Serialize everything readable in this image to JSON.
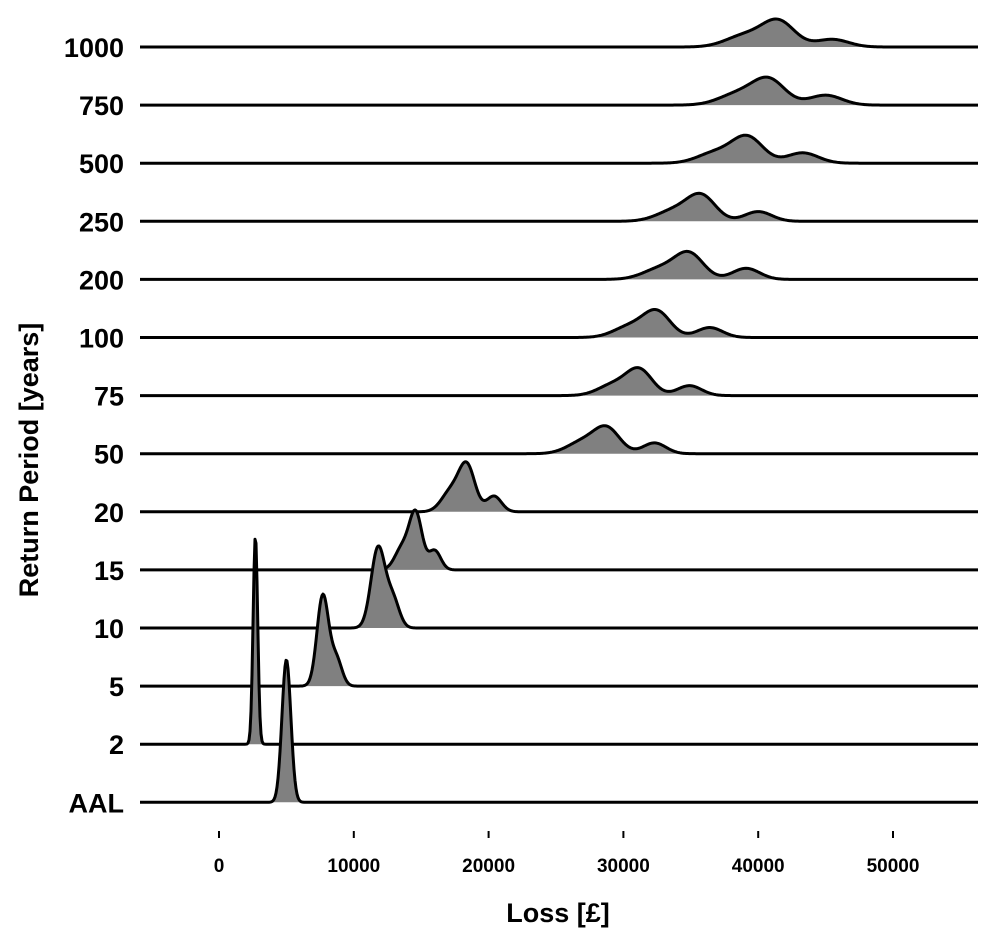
{
  "chart_data": {
    "type": "ridgeline",
    "xlabel": "Loss [£]",
    "ylabel": "Return Period [years]",
    "xlim": [
      -6000,
      56000
    ],
    "x_ticks": [
      0,
      10000,
      20000,
      30000,
      40000,
      50000
    ],
    "x_tick_labels": [
      "0",
      "10000",
      "20000",
      "30000",
      "40000",
      "50000"
    ],
    "fill_color": "#808080",
    "line_color": "#000000",
    "grid": false,
    "series": [
      {
        "name": "1000",
        "peaks": [
          {
            "x": 39000,
            "w": 1400,
            "h": 0.45
          },
          {
            "x": 41500,
            "w": 1200,
            "h": 1.0
          },
          {
            "x": 45500,
            "w": 1200,
            "h": 0.3
          }
        ]
      },
      {
        "name": "750",
        "peaks": [
          {
            "x": 38500,
            "w": 1400,
            "h": 0.45
          },
          {
            "x": 40800,
            "w": 1200,
            "h": 1.0
          },
          {
            "x": 45000,
            "w": 1200,
            "h": 0.4
          }
        ]
      },
      {
        "name": "500",
        "peaks": [
          {
            "x": 36800,
            "w": 1300,
            "h": 0.4
          },
          {
            "x": 39200,
            "w": 1150,
            "h": 1.0
          },
          {
            "x": 43300,
            "w": 1150,
            "h": 0.4
          }
        ]
      },
      {
        "name": "250",
        "peaks": [
          {
            "x": 33800,
            "w": 1300,
            "h": 0.45
          },
          {
            "x": 35800,
            "w": 1050,
            "h": 1.0
          },
          {
            "x": 40000,
            "w": 1000,
            "h": 0.4
          }
        ]
      },
      {
        "name": "200",
        "peaks": [
          {
            "x": 32800,
            "w": 1300,
            "h": 0.45
          },
          {
            "x": 34900,
            "w": 1050,
            "h": 1.0
          },
          {
            "x": 39100,
            "w": 1000,
            "h": 0.45
          }
        ]
      },
      {
        "name": "100",
        "peaks": [
          {
            "x": 30500,
            "w": 1200,
            "h": 0.45
          },
          {
            "x": 32500,
            "w": 1000,
            "h": 1.0
          },
          {
            "x": 36400,
            "w": 950,
            "h": 0.4
          }
        ]
      },
      {
        "name": "75",
        "peaks": [
          {
            "x": 29300,
            "w": 1150,
            "h": 0.45
          },
          {
            "x": 31200,
            "w": 950,
            "h": 1.0
          },
          {
            "x": 34900,
            "w": 900,
            "h": 0.4
          }
        ]
      },
      {
        "name": "50",
        "peaks": [
          {
            "x": 27000,
            "w": 1150,
            "h": 0.5
          },
          {
            "x": 28800,
            "w": 950,
            "h": 1.0
          },
          {
            "x": 32300,
            "w": 850,
            "h": 0.45
          }
        ]
      },
      {
        "name": "20",
        "peaks": [
          {
            "x": 17200,
            "w": 700,
            "h": 0.45
          },
          {
            "x": 18400,
            "w": 600,
            "h": 1.0
          },
          {
            "x": 20400,
            "w": 550,
            "h": 0.35
          }
        ]
      },
      {
        "name": "15",
        "peaks": [
          {
            "x": 13600,
            "w": 550,
            "h": 0.4
          },
          {
            "x": 14600,
            "w": 470,
            "h": 1.0
          },
          {
            "x": 16000,
            "w": 450,
            "h": 0.35
          }
        ]
      },
      {
        "name": "10",
        "peaks": [
          {
            "x": 11800,
            "w": 520,
            "h": 1.0
          },
          {
            "x": 12900,
            "w": 480,
            "h": 0.35
          }
        ]
      },
      {
        "name": "5",
        "peaks": [
          {
            "x": 7700,
            "w": 430,
            "h": 1.0
          },
          {
            "x": 8700,
            "w": 420,
            "h": 0.3
          }
        ]
      },
      {
        "name": "2",
        "peaks": [
          {
            "x": 2700,
            "w": 170,
            "h": 1.0
          }
        ]
      },
      {
        "name": "AAL",
        "peaks": [
          {
            "x": 5000,
            "w": 330,
            "h": 1.0
          }
        ]
      }
    ]
  }
}
